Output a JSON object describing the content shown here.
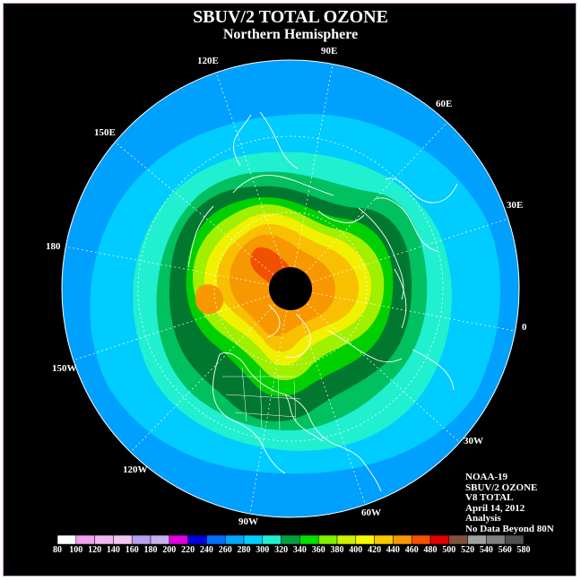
{
  "title": "SBUV/2 TOTAL OZONE",
  "subtitle": "Northern Hemisphere",
  "longitude_labels": {
    "e90": "90E",
    "e60": "60E",
    "e30": "30E",
    "zero": "0",
    "w30": "30W",
    "w60": "60W",
    "w90": "90W",
    "w120": "120W",
    "w150": "150W",
    "e180": "180",
    "e150": "150E",
    "e120": "120E"
  },
  "info": {
    "satellite": "NOAA-19",
    "product": "SBUV/2 OZONE",
    "version": "V8 TOTAL",
    "date": "April 14, 2012",
    "type": "Analysis",
    "note": "No Data Beyond 80N"
  },
  "colorbar": {
    "labels": [
      "80",
      "100",
      "120",
      "140",
      "160",
      "180",
      "200",
      "220",
      "240",
      "260",
      "280",
      "300",
      "320",
      "340",
      "360",
      "380",
      "400",
      "420",
      "440",
      "460",
      "480",
      "500",
      "520",
      "540",
      "560",
      "580"
    ],
    "colors": [
      "#ffffff",
      "#f0a0f0",
      "#f0b8f0",
      "#f0c8f0",
      "#b8a0f0",
      "#c8b0f0",
      "#e000e0",
      "#0000e0",
      "#0070ff",
      "#00a8ff",
      "#00d0ff",
      "#20f0d0",
      "#00a040",
      "#00e000",
      "#80f000",
      "#d0f000",
      "#f8f800",
      "#f8c800",
      "#f89800",
      "#f85000",
      "#e00000",
      "#805040",
      "#a0a0a0",
      "#808080",
      "#505050"
    ]
  },
  "map_colors": {
    "ocean_outer": "#00a0ff",
    "c280": "#00ccff",
    "c300": "#20f0d0",
    "c320": "#00c060",
    "c340": "#007830",
    "c360": "#00d000",
    "c380": "#a0f000",
    "c400": "#f0f000",
    "c420": "#f8c000",
    "c440": "#f89800",
    "c460": "#f05000",
    "no_data": "#000000"
  }
}
